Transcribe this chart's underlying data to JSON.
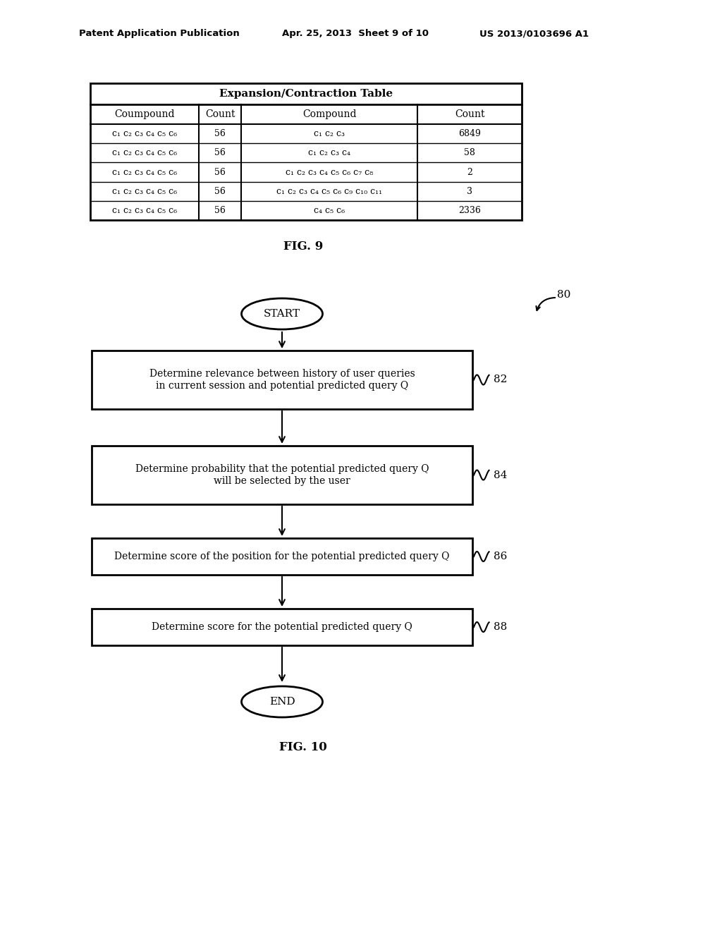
{
  "header_left": "Patent Application Publication",
  "header_mid": "Apr. 25, 2013  Sheet 9 of 10",
  "header_right": "US 2013/0103696 A1",
  "fig9_label": "FIG. 9",
  "fig10_label": "FIG. 10",
  "table_title": "Expansion/Contraction Table",
  "table_col_headers": [
    "Coumpound",
    "Count",
    "Compound",
    "Count"
  ],
  "table_rows": [
    [
      "c₁ c₂ c₃ c₄ c₅ c₆",
      "56",
      "c₁ c₂ c₃",
      "6849"
    ],
    [
      "c₁ c₂ c₃ c₄ c₅ c₆",
      "56",
      "c₁ c₂ c₃ c₄",
      "58"
    ],
    [
      "c₁ c₂ c₃ c₄ c₅ c₆",
      "56",
      "c₁ c₂ c₃ c₄ c₅ c₆ c₇ c₈",
      "2"
    ],
    [
      "c₁ c₂ c₃ c₄ c₅ c₆",
      "56",
      "c₁ c₂ c₃ c₄ c₅ c₆ c₉ c₁₀ c₁₁",
      "3"
    ],
    [
      "c₁ c₂ c₃ c₄ c₅ c₆",
      "56",
      "c₄ c₅ c₆",
      "2336"
    ]
  ],
  "box82_text": "Determine relevance between history of user queries\nin current session and potential predicted query Q",
  "box84_text": "Determine probability that the potential predicted query Q\nwill be selected by the user",
  "box86_text": "Determine score of the position for the potential predicted query Q",
  "box88_text": "Determine score for the potential predicted query Q",
  "bg_color": "#ffffff",
  "text_color": "#000000"
}
